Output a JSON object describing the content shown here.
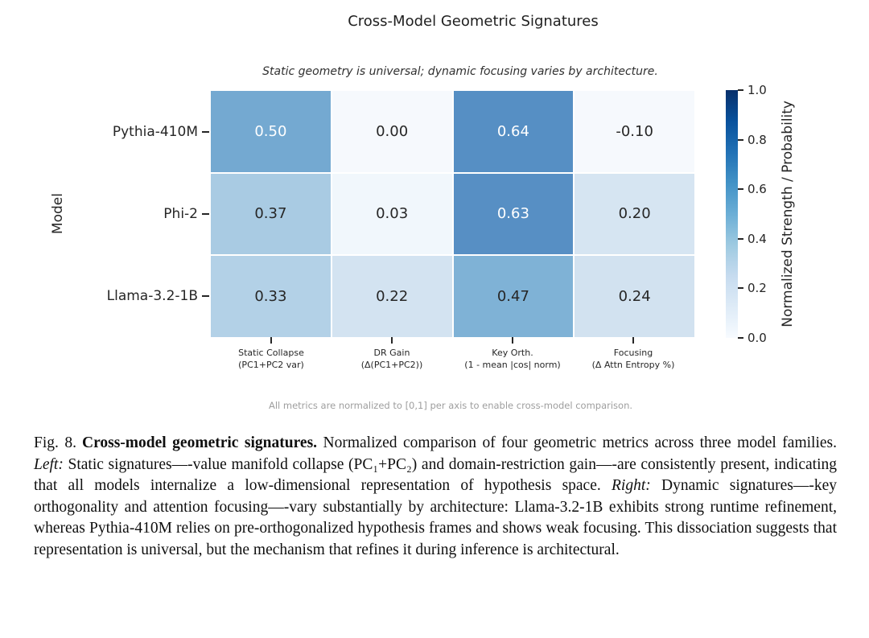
{
  "chart_data": {
    "type": "heatmap",
    "title": "Cross-Model Geometric Signatures",
    "subtitle": "Static geometry is universal; dynamic focusing varies by architecture.",
    "ylabel": "Model",
    "rows": [
      "Pythia-410M",
      "Phi-2",
      "Llama-3.2-1B"
    ],
    "columns": [
      {
        "line1": "Static Collapse",
        "line2": "(PC1+PC2 var)"
      },
      {
        "line1": "DR Gain",
        "line2": "(Δ(PC1+PC2))"
      },
      {
        "line1": "Key Orth.",
        "line2": "(1 - mean |cos| norm)"
      },
      {
        "line1": "Focusing",
        "line2": "(Δ Attn Entropy %)"
      }
    ],
    "values": [
      [
        0.5,
        0.0,
        0.64,
        -0.1
      ],
      [
        0.37,
        0.03,
        0.63,
        0.2
      ],
      [
        0.33,
        0.22,
        0.47,
        0.24
      ]
    ],
    "cell_labels": [
      [
        "0.50",
        "0.00",
        "0.64",
        "-0.10"
      ],
      [
        "0.37",
        "0.03",
        "0.63",
        "0.20"
      ],
      [
        "0.33",
        "0.22",
        "0.47",
        "0.24"
      ]
    ],
    "cell_colors": [
      [
        "#74a9d1",
        "#f6f9fd",
        "#568fc4",
        "#f6f9fd"
      ],
      [
        "#a9cbe3",
        "#f1f7fc",
        "#578fc4",
        "#d6e5f2"
      ],
      [
        "#b3d1e7",
        "#d3e3f1",
        "#7fb2d6",
        "#d2e2f0"
      ]
    ],
    "cell_text_colors": [
      [
        "#ffffff",
        "#262626",
        "#ffffff",
        "#262626"
      ],
      [
        "#262626",
        "#262626",
        "#ffffff",
        "#262626"
      ],
      [
        "#262626",
        "#262626",
        "#262626",
        "#262626"
      ]
    ],
    "value_range": [
      0.0,
      1.0
    ],
    "colorbar": {
      "label": "Normalized Strength / Probability",
      "ticks": [
        "0.0",
        "0.2",
        "0.4",
        "0.6",
        "0.8",
        "1.0"
      ],
      "gradient_stops": [
        "#f7fbff",
        "#deebf7",
        "#c6dbef",
        "#9ecae1",
        "#6baed6",
        "#4292c6",
        "#2171b5",
        "#08519c",
        "#08306b"
      ]
    },
    "footnote": "All metrics are normalized to [0,1] per axis to enable cross-model comparison.",
    "legend_position": "right",
    "grid": false
  },
  "caption": {
    "parts": [
      {
        "text": "Fig. 8."
      },
      {
        "text": "Cross-model geometric signatures."
      },
      {
        "text": " Normalized comparison of four geometric metrics across three model families. "
      },
      {
        "text": "Left:"
      },
      {
        "text": " Static signatures—-value manifold collapse (PC₁+PC₂) and domain-restriction gain—-are consistently present, indicating that all models internalize a low-dimensional representation of hypothesis space. "
      },
      {
        "text": "Right:"
      },
      {
        "text": " Dynamic signatures—-key orthogonality and attention focusing—-vary substantially by architecture: Llama-3.2-1B exhibits strong runtime refinement, whereas Pythia-410M relies on pre-orthogonalized hypothesis frames and shows weak focusing. This dissociation suggests that representation is universal, but the mechanism that refines it during inference is architectural."
      }
    ]
  }
}
